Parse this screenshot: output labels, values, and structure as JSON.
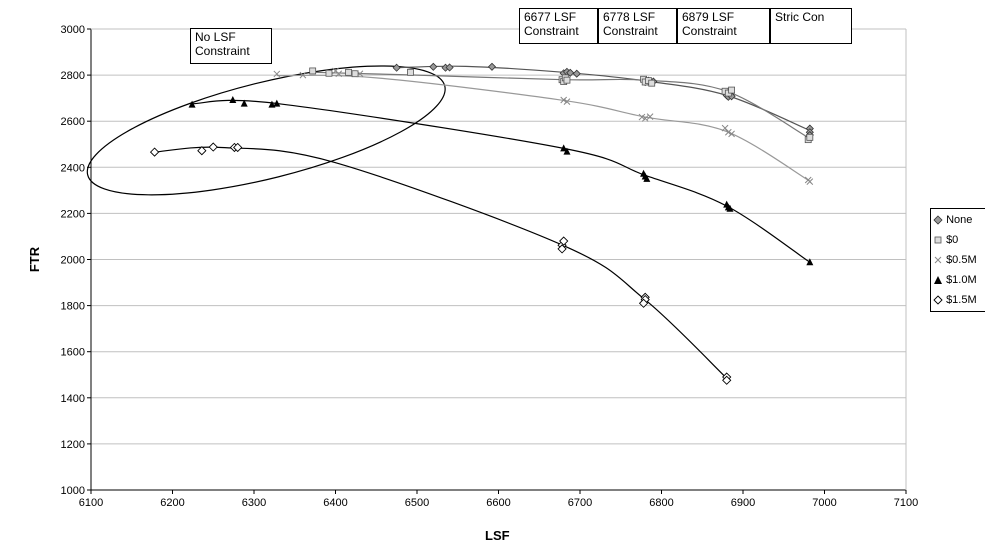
{
  "chart_data": {
    "type": "scatter",
    "xlabel": "LSF",
    "ylabel": "FTR",
    "xlim": [
      6100,
      7100
    ],
    "ylim": [
      1000,
      3000
    ],
    "x_ticks": [
      "6100",
      "6200",
      "6300",
      "6400",
      "6500",
      "6600",
      "6700",
      "6800",
      "6900",
      "7000",
      "7100"
    ],
    "y_ticks": [
      "1000",
      "1200",
      "1400",
      "1600",
      "1800",
      "2000",
      "2200",
      "2400",
      "2600",
      "2800",
      "3000"
    ],
    "grid": "horizontal",
    "legend_placement": "right",
    "annotations": {
      "no_constraint": "No LSF\nConstraint",
      "c6677": "6677 LSF\nConstraint",
      "c6778": "6778 LSF\nConstraint",
      "c6879": "6879 LSF\nConstraint",
      "strict": "Stric\nCon"
    },
    "series": [
      {
        "name": "None",
        "marker": "diamond-filled-gray",
        "color": "#555555",
        "points": [
          [
            6475,
            2832
          ],
          [
            6520,
            2836
          ],
          [
            6535,
            2832
          ],
          [
            6540,
            2833
          ],
          [
            6592,
            2836
          ],
          [
            6680,
            2808
          ],
          [
            6684,
            2814
          ],
          [
            6688,
            2810
          ],
          [
            6696,
            2806
          ],
          [
            6780,
            2770
          ],
          [
            6784,
            2776
          ],
          [
            6790,
            2772
          ],
          [
            6880,
            2712
          ],
          [
            6882,
            2706
          ],
          [
            6886,
            2708
          ],
          [
            6982,
            2568
          ],
          [
            6982,
            2552
          ],
          [
            6982,
            2540
          ]
        ],
        "trend": [
          [
            6475,
            2832
          ],
          [
            6560,
            2838
          ],
          [
            6680,
            2812
          ],
          [
            6780,
            2775
          ],
          [
            6880,
            2712
          ],
          [
            6982,
            2560
          ]
        ]
      },
      {
        "name": "$0",
        "marker": "square-gray",
        "color": "#777777",
        "points": [
          [
            6372,
            2818
          ],
          [
            6392,
            2808
          ],
          [
            6416,
            2812
          ],
          [
            6424,
            2806
          ],
          [
            6492,
            2812
          ],
          [
            6678,
            2780
          ],
          [
            6680,
            2772
          ],
          [
            6682,
            2788
          ],
          [
            6684,
            2778
          ],
          [
            6778,
            2782
          ],
          [
            6780,
            2770
          ],
          [
            6784,
            2776
          ],
          [
            6788,
            2765
          ],
          [
            6878,
            2730
          ],
          [
            6882,
            2722
          ],
          [
            6886,
            2735
          ],
          [
            6980,
            2520
          ],
          [
            6982,
            2530
          ]
        ],
        "trend": [
          [
            6372,
            2812
          ],
          [
            6500,
            2800
          ],
          [
            6680,
            2780
          ],
          [
            6780,
            2778
          ],
          [
            6880,
            2730
          ],
          [
            6982,
            2525
          ]
        ]
      },
      {
        "name": "$0.5M",
        "marker": "x-gray",
        "color": "#999999",
        "points": [
          [
            6328,
            2805
          ],
          [
            6360,
            2800
          ],
          [
            6400,
            2818
          ],
          [
            6404,
            2806
          ],
          [
            6430,
            2806
          ],
          [
            6680,
            2692
          ],
          [
            6684,
            2685
          ],
          [
            6776,
            2618
          ],
          [
            6780,
            2612
          ],
          [
            6786,
            2620
          ],
          [
            6878,
            2570
          ],
          [
            6882,
            2552
          ],
          [
            6886,
            2545
          ],
          [
            6980,
            2345
          ],
          [
            6982,
            2338
          ]
        ],
        "trend": [
          [
            6328,
            2798
          ],
          [
            6450,
            2788
          ],
          [
            6680,
            2690
          ],
          [
            6780,
            2618
          ],
          [
            6880,
            2555
          ],
          [
            6982,
            2340
          ]
        ]
      },
      {
        "name": "$1.0M",
        "marker": "triangle-black",
        "color": "#000000",
        "points": [
          [
            6224,
            2672
          ],
          [
            6274,
            2692
          ],
          [
            6288,
            2676
          ],
          [
            6322,
            2672
          ],
          [
            6328,
            2676
          ],
          [
            6680,
            2482
          ],
          [
            6684,
            2468
          ],
          [
            6778,
            2372
          ],
          [
            6780,
            2360
          ],
          [
            6782,
            2350
          ],
          [
            6880,
            2238
          ],
          [
            6882,
            2226
          ],
          [
            6884,
            2220
          ],
          [
            6982,
            1988
          ]
        ],
        "trend": [
          [
            6224,
            2676
          ],
          [
            6330,
            2676
          ],
          [
            6680,
            2482
          ],
          [
            6780,
            2365
          ],
          [
            6880,
            2232
          ],
          [
            6982,
            1988
          ]
        ]
      },
      {
        "name": "$1.5M",
        "marker": "diamond-open",
        "color": "#000000",
        "points": [
          [
            6178,
            2466
          ],
          [
            6236,
            2472
          ],
          [
            6250,
            2488
          ],
          [
            6276,
            2486
          ],
          [
            6280,
            2486
          ],
          [
            6678,
            2062
          ],
          [
            6680,
            2080
          ],
          [
            6678,
            2046
          ],
          [
            6780,
            1836
          ],
          [
            6780,
            1826
          ],
          [
            6778,
            1810
          ],
          [
            6880,
            1490
          ],
          [
            6880,
            1476
          ]
        ],
        "trend": [
          [
            6178,
            2466
          ],
          [
            6260,
            2486
          ],
          [
            6400,
            2420
          ],
          [
            6680,
            2060
          ],
          [
            6780,
            1825
          ],
          [
            6880,
            1485
          ]
        ]
      }
    ]
  }
}
